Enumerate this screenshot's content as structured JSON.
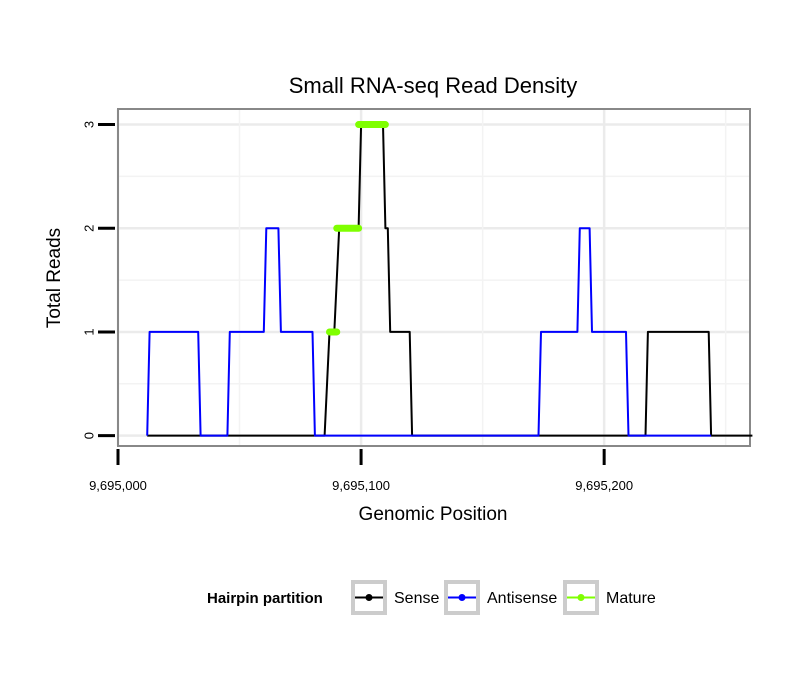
{
  "chart_data": {
    "type": "line",
    "title": "Small RNA-seq Read Density",
    "xlabel": "Genomic Position",
    "ylabel": "Total Reads",
    "xlim": [
      9695000,
      9695260
    ],
    "ylim": [
      -0.1,
      3.15
    ],
    "x_ticks": [
      {
        "value": 9695000,
        "label": "9,695,000"
      },
      {
        "value": 9695100,
        "label": "9,695,100"
      },
      {
        "value": 9695200,
        "label": "9,695,200"
      }
    ],
    "y_ticks": [
      {
        "value": 0,
        "label": "0"
      },
      {
        "value": 1,
        "label": "1"
      },
      {
        "value": 2,
        "label": "2"
      },
      {
        "value": 3,
        "label": "3"
      }
    ],
    "grid": true,
    "legend": {
      "title": "Hairpin partition",
      "position": "bottom"
    },
    "series": [
      {
        "name": "Sense",
        "color": "#000000",
        "style": "line",
        "x": [
          9695012,
          9695085,
          9695087,
          9695089,
          9695091,
          9695099,
          9695100,
          9695109,
          9695110,
          9695111,
          9695112,
          9695120,
          9695121,
          9695217,
          9695218,
          9695243,
          9695244,
          9695261
        ],
        "y": [
          0,
          0,
          1,
          1,
          2,
          2,
          3,
          3,
          2,
          2,
          1,
          1,
          0,
          0,
          1,
          1,
          0,
          0
        ]
      },
      {
        "name": "Antisense",
        "color": "#0000ff",
        "style": "line",
        "x": [
          9695012,
          9695013,
          9695033,
          9695034,
          9695045,
          9695046,
          9695060,
          9695061,
          9695066,
          9695067,
          9695080,
          9695081,
          9695173,
          9695174,
          9695189,
          9695190,
          9695194,
          9695195,
          9695209,
          9695210,
          9695244
        ],
        "y": [
          0,
          1,
          1,
          0,
          0,
          1,
          1,
          2,
          2,
          1,
          1,
          0,
          0,
          1,
          1,
          2,
          2,
          1,
          1,
          0,
          0
        ]
      },
      {
        "name": "Mature",
        "color": "#7fff00",
        "style": "thick-segments",
        "segments": [
          {
            "x": [
              9695087,
              9695090
            ],
            "y": 1
          },
          {
            "x": [
              9695090,
              9695099
            ],
            "y": 2
          },
          {
            "x": [
              9695099,
              9695110
            ],
            "y": 3
          }
        ]
      }
    ]
  }
}
